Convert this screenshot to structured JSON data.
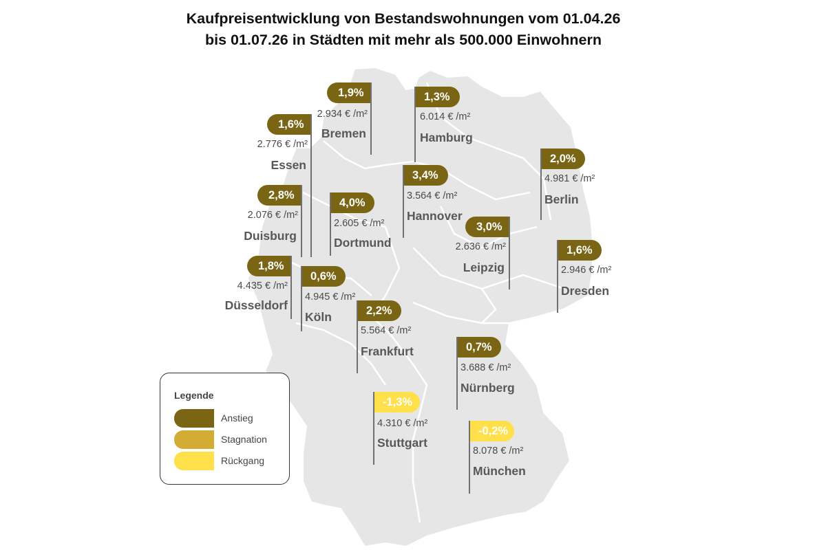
{
  "title_line1": "Kaufpreisentwicklung von Bestandswohnungen vom 01.04.26",
  "title_line2": "bis 01.07.26 in Städten mit mehr als 500.000 Einwohnern",
  "colors": {
    "anstieg": "#7a6515",
    "stagnation": "#d2ac33",
    "rueckgang": "#ffe04a",
    "map": "#e6e6e6",
    "borders": "#ffffff"
  },
  "legend": {
    "title": "Legende",
    "anstieg": "Anstieg",
    "stagnation": "Stagnation",
    "rueckgang": "Rückgang"
  },
  "cities": {
    "bremen": {
      "name": "Bremen",
      "change": "1,9%",
      "price": "2.934 € /m²",
      "trend": "Anstieg"
    },
    "hamburg": {
      "name": "Hamburg",
      "change": "1,3%",
      "price": "6.014 € /m²",
      "trend": "Anstieg"
    },
    "essen": {
      "name": "Essen",
      "change": "1,6%",
      "price": "2.776 € /m²",
      "trend": "Anstieg"
    },
    "berlin": {
      "name": "Berlin",
      "change": "2,0%",
      "price": "4.981 € /m²",
      "trend": "Anstieg"
    },
    "hannover": {
      "name": "Hannover",
      "change": "3,4%",
      "price": "3.564 € /m²",
      "trend": "Anstieg"
    },
    "duisburg": {
      "name": "Duisburg",
      "change": "2,8%",
      "price": "2.076 € /m²",
      "trend": "Anstieg"
    },
    "dortmund": {
      "name": "Dortmund",
      "change": "4,0%",
      "price": "2.605 € /m²",
      "trend": "Anstieg"
    },
    "leipzig": {
      "name": "Leipzig",
      "change": "3,0%",
      "price": "2.636 € /m²",
      "trend": "Anstieg"
    },
    "dresden": {
      "name": "Dresden",
      "change": "1,6%",
      "price": "2.946 € /m²",
      "trend": "Anstieg"
    },
    "duesseldorf": {
      "name": "Düsseldorf",
      "change": "1,8%",
      "price": "4.435 € /m²",
      "trend": "Anstieg"
    },
    "koeln": {
      "name": "Köln",
      "change": "0,6%",
      "price": "4.945 € /m²",
      "trend": "Anstieg"
    },
    "frankfurt": {
      "name": "Frankfurt",
      "change": "2,2%",
      "price": "5.564 € /m²",
      "trend": "Anstieg"
    },
    "nuernberg": {
      "name": "Nürnberg",
      "change": "0,7%",
      "price": "3.688 € /m²",
      "trend": "Anstieg"
    },
    "stuttgart": {
      "name": "Stuttgart",
      "change": "-1,3%",
      "price": "4.310 € /m²",
      "trend": "Rückgang"
    },
    "muenchen": {
      "name": "München",
      "change": "-0,2%",
      "price": "8.078 € /m²",
      "trend": "Rückgang"
    }
  }
}
